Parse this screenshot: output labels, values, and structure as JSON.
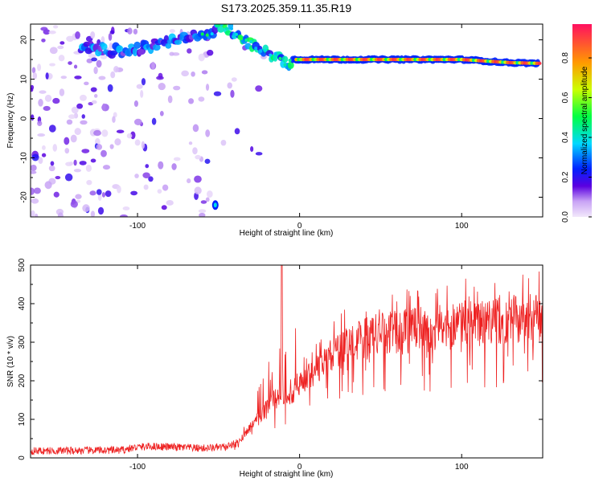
{
  "title": "S173.2025.359.11.35.R19",
  "colors": {
    "line": "#ee2222",
    "axis": "#000000"
  },
  "chart_data": [
    {
      "type": "heatmap",
      "xlabel": "Height of straight line (km)",
      "ylabel": "Frequency (Hz)",
      "xlim": [
        -166,
        150
      ],
      "ylim": [
        -25,
        24
      ],
      "xticks": [
        {
          "v": -100,
          "label": "-100"
        },
        {
          "v": 0,
          "label": "0"
        },
        {
          "v": 100,
          "label": "100"
        }
      ],
      "yticks": [
        {
          "v": -20,
          "label": "-20"
        },
        {
          "v": -10,
          "label": "-10"
        },
        {
          "v": 0,
          "label": "0"
        },
        {
          "v": 10,
          "label": "10"
        },
        {
          "v": 20,
          "label": "20"
        }
      ],
      "colorbar": {
        "label": "Normalized spectral amplitude",
        "range": [
          0,
          0.97
        ],
        "ticks": [
          {
            "v": 0.0,
            "label": "0.0"
          },
          {
            "v": 0.2,
            "label": "0.2"
          },
          {
            "v": 0.4,
            "label": "0.4"
          },
          {
            "v": 0.6,
            "label": "0.6"
          },
          {
            "v": 0.8,
            "label": "0.8"
          }
        ]
      },
      "ridge": {
        "description": "dominant frequency trace",
        "x": [
          -130,
          -110,
          -95,
          -75,
          -60,
          -48,
          -40,
          -30,
          -20,
          -12,
          -8,
          -4,
          0,
          20,
          60,
          100,
          130,
          150
        ],
        "y": [
          18,
          17,
          18,
          20,
          21,
          23.5,
          22,
          19,
          16.5,
          15.5,
          14,
          15,
          15,
          15,
          15,
          15,
          14.2,
          14
        ]
      },
      "secondary_blob": {
        "x": -52,
        "y": -22
      }
    },
    {
      "type": "line",
      "xlabel": "Height of straight line (km)",
      "ylabel": "SNR (10 * v/v)",
      "xlim": [
        -166,
        150
      ],
      "ylim": [
        0,
        500
      ],
      "xticks": [
        {
          "v": -100,
          "label": "-100"
        },
        {
          "v": 0,
          "label": "0"
        },
        {
          "v": 100,
          "label": "100"
        }
      ],
      "yticks": [
        {
          "v": 0,
          "label": "0"
        },
        {
          "v": 100,
          "label": "100"
        },
        {
          "v": 200,
          "label": "200"
        },
        {
          "v": 300,
          "label": "300"
        },
        {
          "v": 400,
          "label": "400"
        },
        {
          "v": 500,
          "label": "500"
        }
      ],
      "series": [
        {
          "name": "SNR",
          "trend_x": [
            -166,
            -110,
            -100,
            -90,
            -60,
            -45,
            -38,
            -30,
            -22,
            -16,
            -12,
            -8,
            -4,
            0,
            6,
            12,
            18,
            24,
            35,
            50,
            70,
            100,
            130,
            150
          ],
          "trend_y": [
            18,
            20,
            28,
            30,
            25,
            28,
            40,
            80,
            120,
            150,
            165,
            150,
            170,
            200,
            215,
            230,
            250,
            280,
            300,
            320,
            330,
            345,
            360,
            365
          ],
          "spike_x": -11,
          "spike_y": 500
        }
      ]
    }
  ]
}
